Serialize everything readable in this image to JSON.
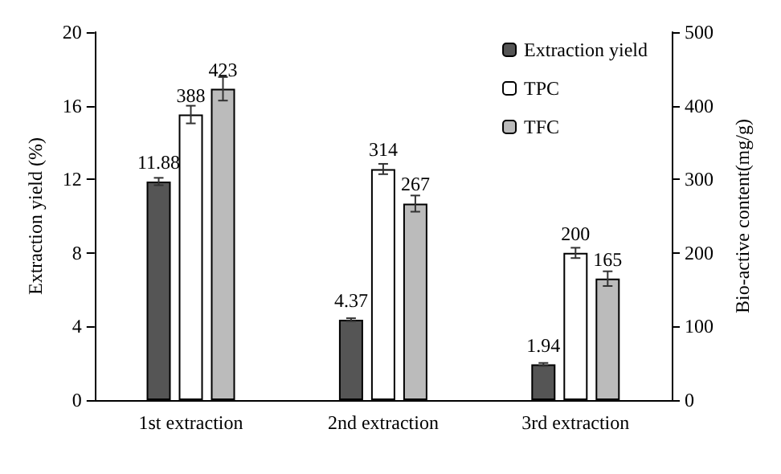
{
  "chart_data": {
    "type": "bar",
    "ylabel": "Extraction yield (%)",
    "y2label": "Bio-active content(mg/g)",
    "categories": [
      "1st extraction",
      "2nd extraction",
      "3rd extraction"
    ],
    "series": [
      {
        "name": "Extraction yield",
        "color": "#555555",
        "values": [
          11.88,
          4.37,
          1.94
        ],
        "errors": [
          0.2,
          0.08,
          0.08
        ]
      },
      {
        "name": "TPC",
        "color": "#ffffff",
        "axis": "y2",
        "values": [
          388,
          314,
          200
        ],
        "errors": [
          12,
          7,
          7
        ]
      },
      {
        "name": "TFC",
        "color": "#bbbbbb",
        "axis": "y2",
        "values": [
          423,
          267,
          165
        ],
        "errors": [
          16,
          11,
          10
        ]
      }
    ],
    "ylim": [
      0,
      20
    ],
    "yticks": [
      0,
      4,
      8,
      12,
      16,
      20
    ],
    "y2lim": [
      0,
      500
    ],
    "y2ticks": [
      0,
      100,
      200,
      300,
      400,
      500
    ],
    "data_labels": true,
    "legend": "top right",
    "grid": false
  }
}
